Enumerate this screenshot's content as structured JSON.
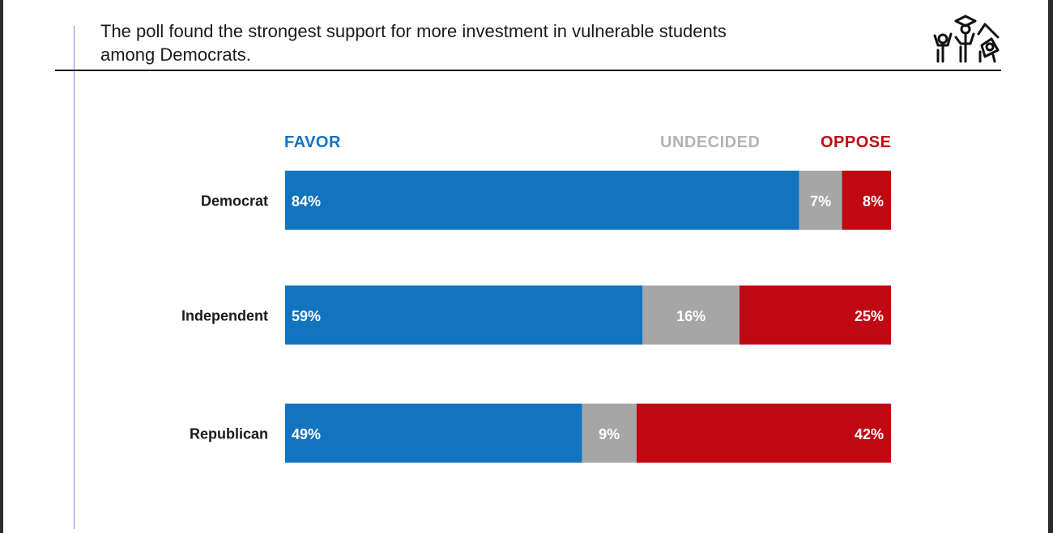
{
  "title": {
    "line1": "The poll found the strongest support for more investment in vulnerable students",
    "line2": "among Democrats."
  },
  "logo_icon": "celebrating-students-graduation-icon",
  "colors": {
    "favor": "#1273be",
    "undecided": "#a6a6a6",
    "oppose": "#bf0811",
    "text": "#1a1a1a",
    "undecided_legend": "#b3b3b3"
  },
  "chart_data": {
    "type": "bar",
    "orientation": "horizontal",
    "stacked": "percent",
    "categories": [
      "Democrat",
      "Independent",
      "Republican"
    ],
    "series": [
      {
        "name": "FAVOR",
        "values": [
          84,
          59,
          49
        ],
        "labels": [
          "84%",
          "59%",
          "49%"
        ]
      },
      {
        "name": "UNDECIDED",
        "values": [
          7,
          16,
          9
        ],
        "labels": [
          "7%",
          "16%",
          "9%"
        ]
      },
      {
        "name": "OPPOSE",
        "values": [
          8,
          25,
          42
        ],
        "labels": [
          "8%",
          "25%",
          "42%"
        ]
      }
    ],
    "legend_position": "top",
    "grid": false,
    "title": "",
    "xlabel": "",
    "ylabel": ""
  }
}
